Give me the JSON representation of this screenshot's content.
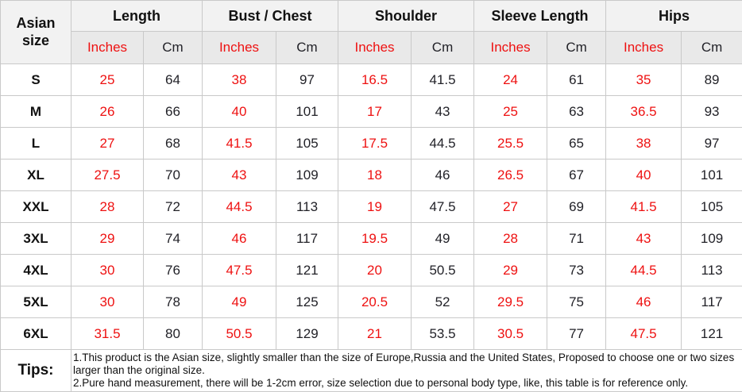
{
  "chart_data": {
    "type": "table",
    "corner_header": "Asian size",
    "column_groups": [
      {
        "label": "Length"
      },
      {
        "label": "Bust / Chest"
      },
      {
        "label": "Shoulder"
      },
      {
        "label": "Sleeve Length"
      },
      {
        "label": "Hips"
      }
    ],
    "unit_headers": {
      "inches": "Inches",
      "cm": "Cm"
    },
    "rows": [
      {
        "size": "S",
        "values": [
          "25",
          "64",
          "38",
          "97",
          "16.5",
          "41.5",
          "24",
          "61",
          "35",
          "89"
        ]
      },
      {
        "size": "M",
        "values": [
          "26",
          "66",
          "40",
          "101",
          "17",
          "43",
          "25",
          "63",
          "36.5",
          "93"
        ]
      },
      {
        "size": "L",
        "values": [
          "27",
          "68",
          "41.5",
          "105",
          "17.5",
          "44.5",
          "25.5",
          "65",
          "38",
          "97"
        ]
      },
      {
        "size": "XL",
        "values": [
          "27.5",
          "70",
          "43",
          "109",
          "18",
          "46",
          "26.5",
          "67",
          "40",
          "101"
        ]
      },
      {
        "size": "XXL",
        "values": [
          "28",
          "72",
          "44.5",
          "113",
          "19",
          "47.5",
          "27",
          "69",
          "41.5",
          "105"
        ]
      },
      {
        "size": "3XL",
        "values": [
          "29",
          "74",
          "46",
          "117",
          "19.5",
          "49",
          "28",
          "71",
          "43",
          "109"
        ]
      },
      {
        "size": "4XL",
        "values": [
          "30",
          "76",
          "47.5",
          "121",
          "20",
          "50.5",
          "29",
          "73",
          "44.5",
          "113"
        ]
      },
      {
        "size": "5XL",
        "values": [
          "30",
          "78",
          "49",
          "125",
          "20.5",
          "52",
          "29.5",
          "75",
          "46",
          "117"
        ]
      },
      {
        "size": "6XL",
        "values": [
          "31.5",
          "80",
          "50.5",
          "129",
          "21",
          "53.5",
          "30.5",
          "77",
          "47.5",
          "121"
        ]
      }
    ],
    "tips": {
      "label": "Tips:",
      "lines": [
        "1.This product is the Asian size, slightly smaller than the size of Europe,Russia and the United States, Proposed to choose one or two sizes larger than the original size.",
        "2.Pure hand measurement, there will be 1-2cm error, size selection due to personal body type, like, this table is for reference only."
      ]
    },
    "colors": {
      "accent_red": "#ee1111",
      "value_text": "#222228",
      "group_header_bg": "#f2f2f2",
      "unit_header_bg": "#e9e9e9",
      "border": "#c9c9c9",
      "background": "#ffffff"
    }
  }
}
